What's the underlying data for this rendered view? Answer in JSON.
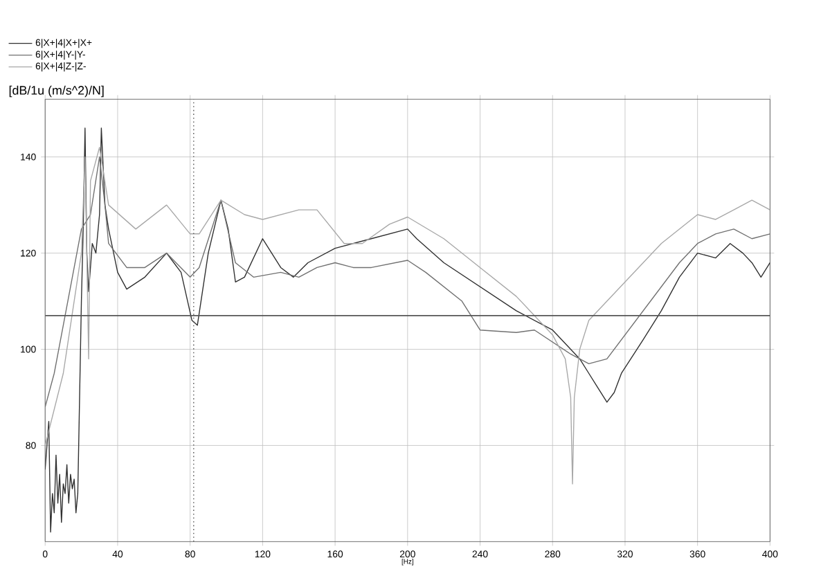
{
  "chart_data": {
    "type": "line",
    "xlabel": "[Hz]",
    "ylabel": "[dB/1u (m/s^2)/N]",
    "xlim": [
      0,
      400
    ],
    "ylim": [
      60,
      152
    ],
    "xticks": [
      0,
      40,
      80,
      120,
      160,
      200,
      240,
      280,
      320,
      360,
      400
    ],
    "yticks": [
      80,
      100,
      120,
      140
    ],
    "grid": true,
    "legend": "top left",
    "line_style": "solid",
    "ref_lines": [
      {
        "axis": "y",
        "value": 107,
        "color": "#555555",
        "line_style": "solid"
      },
      {
        "axis": "x",
        "value": 82,
        "color": "#555555",
        "line_style": "dotted"
      }
    ],
    "series": [
      {
        "name": "6|X+|4|X+|X+",
        "color": "#303030",
        "x": [
          0,
          2,
          3,
          4,
          5,
          6,
          7,
          8,
          9,
          10,
          11,
          12,
          13,
          14,
          15,
          16,
          17,
          18,
          20,
          21,
          22,
          23,
          24,
          26,
          28,
          30,
          31,
          33,
          35,
          40,
          45,
          55,
          67,
          75,
          81,
          84,
          90,
          97,
          101,
          105,
          110,
          120,
          130,
          137,
          145,
          160,
          180,
          200,
          205,
          220,
          240,
          260,
          280,
          290,
          295,
          300,
          305,
          310,
          314,
          318,
          330,
          340,
          350,
          360,
          370,
          378,
          385,
          390,
          395,
          400
        ],
        "values": [
          75,
          85,
          62,
          70,
          66,
          78,
          68,
          74,
          64,
          72,
          70,
          76,
          68,
          74,
          71,
          73,
          66,
          70,
          110,
          125,
          146,
          120,
          112,
          122,
          120,
          128,
          146,
          130,
          125,
          116,
          112.5,
          115,
          120,
          116,
          106,
          105,
          120,
          131,
          125,
          114,
          115,
          123,
          117,
          115,
          118,
          121,
          123,
          125,
          123,
          118,
          113,
          108,
          104,
          100,
          98,
          95,
          92,
          89,
          91,
          95,
          102,
          108,
          115,
          120,
          119,
          122,
          120,
          118,
          115,
          118
        ]
      },
      {
        "name": "6|X+|4|Y-|Y-",
        "color": "#707070",
        "x": [
          0,
          5,
          10,
          20,
          25,
          30,
          33,
          35,
          45,
          55,
          67,
          80,
          85,
          97,
          105,
          115,
          130,
          140,
          150,
          160,
          170,
          180,
          200,
          210,
          230,
          240,
          260,
          270,
          290,
          300,
          310,
          330,
          350,
          360,
          370,
          380,
          390,
          400
        ],
        "values": [
          88,
          95,
          105,
          125,
          128,
          140,
          130,
          122,
          117,
          117,
          120,
          115,
          117,
          131,
          118,
          115,
          116,
          115,
          117,
          118,
          117,
          117,
          118.5,
          116,
          110,
          104,
          103.5,
          104,
          99,
          97,
          98,
          108,
          118,
          122,
          124,
          125,
          123,
          124
        ]
      },
      {
        "name": "6|X+|4|Z-|Z-",
        "color": "#a8a8a8",
        "x": [
          0,
          10,
          20,
          22,
          24,
          25,
          30,
          35,
          50,
          67,
          80,
          85,
          97,
          110,
          120,
          140,
          150,
          165,
          175,
          190,
          200,
          220,
          240,
          260,
          280,
          287,
          290,
          291,
          292,
          295,
          300,
          320,
          340,
          360,
          370,
          380,
          390,
          400
        ],
        "values": [
          80,
          95,
          120,
          140,
          98,
          135,
          142,
          130,
          125,
          130,
          124,
          124,
          131,
          128,
          127,
          129,
          129,
          122,
          122,
          126,
          127.5,
          123,
          117,
          111,
          103,
          98,
          90,
          72,
          90,
          100,
          106,
          114,
          122,
          128,
          127,
          129,
          131,
          129
        ]
      }
    ]
  }
}
